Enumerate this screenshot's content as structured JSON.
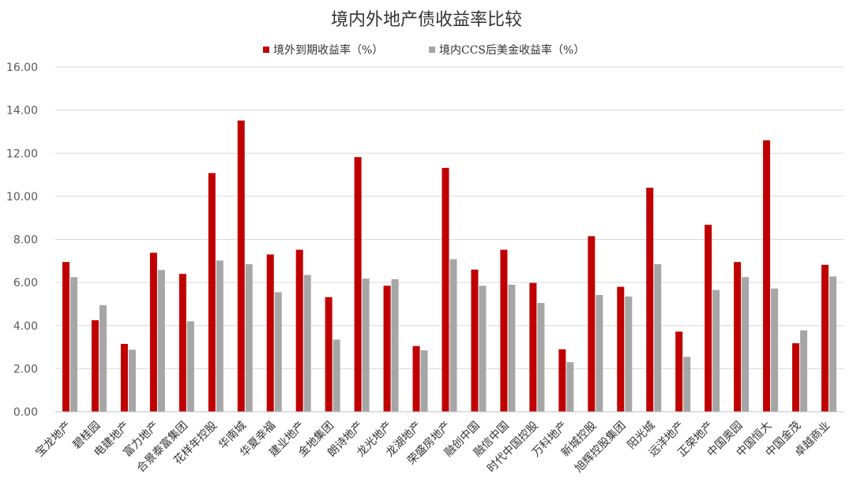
{
  "chart_data": {
    "type": "bar",
    "title": "境内外地产债收益率比较",
    "legend_position": "top",
    "grid": true,
    "ylim": [
      0,
      16
    ],
    "yticks": [
      "0.00",
      "2.00",
      "4.00",
      "6.00",
      "8.00",
      "10.00",
      "12.00",
      "14.00",
      "16.00"
    ],
    "categories": [
      "宝龙地产",
      "碧桂园",
      "电建地产",
      "富力地产",
      "合景泰富集团",
      "花样年控股",
      "华南城",
      "华夏幸福",
      "建业地产",
      "金地集团",
      "朗诗地产",
      "龙光地产",
      "龙湖地产",
      "荣盛房地产",
      "融创中国",
      "融信中国",
      "时代中国控股",
      "万科地产",
      "新城控股",
      "旭辉控股集团",
      "阳光城",
      "远洋地产",
      "正荣地产",
      "中国奥园",
      "中国恒大",
      "中国金茂",
      "卓越商业"
    ],
    "series": [
      {
        "name": "境外到期收益率（%）",
        "color": "#c00000",
        "values": [
          6.95,
          4.25,
          3.15,
          7.38,
          6.4,
          11.08,
          13.52,
          7.3,
          7.52,
          5.32,
          11.82,
          5.85,
          3.05,
          11.32,
          6.6,
          7.52,
          5.98,
          2.9,
          8.15,
          5.8,
          10.4,
          3.72,
          8.68,
          6.95,
          12.6,
          3.18,
          6.82
        ]
      },
      {
        "name": "境内CCS后美金收益率（%）",
        "color": "#a6a6a6",
        "values": [
          6.25,
          4.95,
          2.88,
          6.58,
          4.2,
          7.02,
          6.85,
          5.55,
          6.35,
          3.35,
          6.18,
          6.15,
          2.85,
          7.08,
          5.85,
          5.9,
          5.05,
          2.3,
          5.42,
          5.35,
          6.85,
          2.55,
          5.65,
          6.25,
          5.72,
          3.78,
          6.28
        ]
      }
    ]
  }
}
